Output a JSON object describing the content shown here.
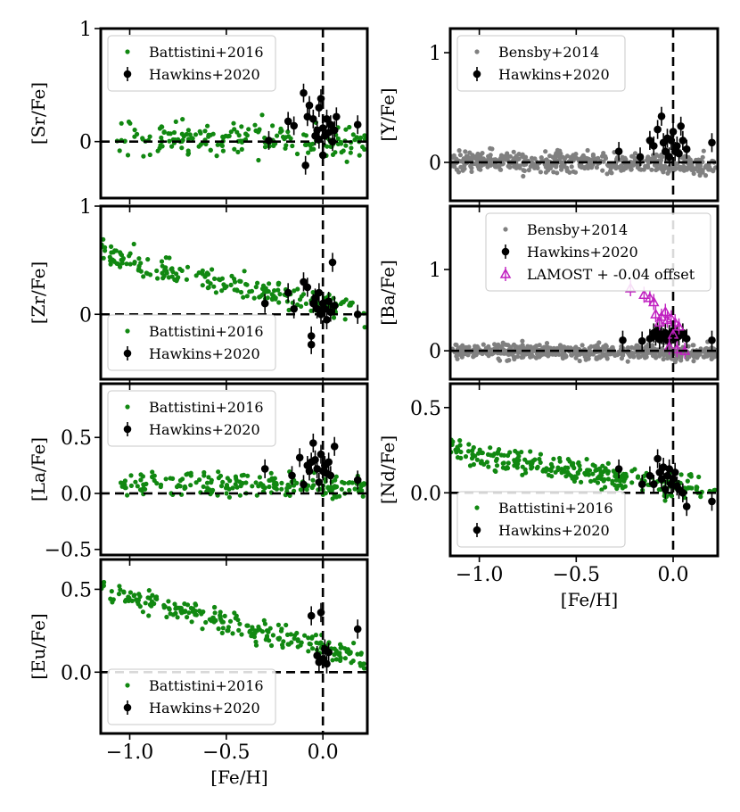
{
  "figure": {
    "xlabel": "[Fe/H]"
  },
  "colors": {
    "battistini": "#118811",
    "bensby": "#808080",
    "hawkins": "#000000",
    "lamost": "#c020c0"
  },
  "chart_data": [
    {
      "id": "sr",
      "type": "scatter",
      "ylabel": "[Sr/Fe]",
      "xlim": [
        -1.15,
        0.23
      ],
      "ylim": [
        -0.5,
        1.0
      ],
      "xticks": [
        -1.0,
        -0.5,
        0.0
      ],
      "xticklabels": [],
      "yticks": [
        1,
        0
      ],
      "yticklabels": [
        "1",
        "0"
      ],
      "legend": {
        "position": "top-left",
        "entries": [
          "Battistini+2016",
          "Hawkins+2020"
        ]
      },
      "series": [
        {
          "name": "Battistini+2016",
          "style": "dot",
          "color": "#118811",
          "seed": 11,
          "n": 190,
          "xrange": [
            -1.1,
            0.22
          ],
          "trend": [
            0.05,
            -0.02
          ],
          "spread": 0.15
        },
        {
          "name": "Hawkins+2020",
          "style": "errorbar",
          "color": "#000000",
          "points": [
            [
              -0.28,
              0.01
            ],
            [
              -0.18,
              0.18
            ],
            [
              -0.15,
              0.14
            ],
            [
              -0.1,
              0.43
            ],
            [
              -0.09,
              -0.21
            ],
            [
              -0.08,
              0.22
            ],
            [
              -0.07,
              0.32
            ],
            [
              -0.05,
              0.2
            ],
            [
              -0.04,
              0.05
            ],
            [
              -0.03,
              0.1
            ],
            [
              -0.02,
              0.3
            ],
            [
              -0.02,
              0.02
            ],
            [
              -0.01,
              0.38
            ],
            [
              0.0,
              0.12
            ],
            [
              0.0,
              -0.12
            ],
            [
              0.01,
              0.05
            ],
            [
              0.02,
              0.2
            ],
            [
              0.03,
              0.08
            ],
            [
              0.04,
              0.15
            ],
            [
              0.05,
              0.0
            ],
            [
              0.06,
              0.1
            ],
            [
              0.07,
              0.22
            ],
            [
              0.18,
              0.15
            ]
          ]
        }
      ]
    },
    {
      "id": "zr",
      "type": "scatter",
      "ylabel": "[Zr/Fe]",
      "xlim": [
        -1.15,
        0.23
      ],
      "ylim": [
        -0.6,
        1.0
      ],
      "xticks": [
        -1.0,
        -0.5,
        0.0
      ],
      "xticklabels": [],
      "yticks": [
        1,
        0
      ],
      "yticklabels": [
        "1",
        "0"
      ],
      "legend": {
        "position": "bottom-left",
        "entries": [
          "Battistini+2016",
          "Hawkins+2020"
        ]
      },
      "series": [
        {
          "name": "Battistini+2016",
          "style": "dot",
          "color": "#118811",
          "seed": 23,
          "n": 200,
          "xrange": [
            -1.15,
            0.22
          ],
          "trend": [
            0.55,
            0.0
          ],
          "spread": 0.12
        },
        {
          "name": "Hawkins+2020",
          "style": "errorbar",
          "color": "#000000",
          "points": [
            [
              -0.3,
              0.1
            ],
            [
              -0.18,
              0.2
            ],
            [
              -0.15,
              0.05
            ],
            [
              -0.1,
              0.3
            ],
            [
              -0.08,
              0.25
            ],
            [
              -0.06,
              -0.2
            ],
            [
              -0.06,
              -0.28
            ],
            [
              -0.05,
              0.1
            ],
            [
              -0.04,
              0.15
            ],
            [
              -0.03,
              0.05
            ],
            [
              -0.02,
              0.2
            ],
            [
              -0.01,
              0.0
            ],
            [
              0.0,
              0.1
            ],
            [
              0.01,
              0.05
            ],
            [
              0.02,
              -0.05
            ],
            [
              0.03,
              0.12
            ],
            [
              0.04,
              0.02
            ],
            [
              0.05,
              0.48
            ],
            [
              0.06,
              0.08
            ],
            [
              0.18,
              0.0
            ]
          ]
        }
      ]
    },
    {
      "id": "la",
      "type": "scatter",
      "ylabel": "[La/Fe]",
      "xlim": [
        -1.15,
        0.23
      ],
      "ylim": [
        -0.55,
        0.98
      ],
      "xticks": [
        -1.0,
        -0.5,
        0.0
      ],
      "xticklabels": [],
      "yticks": [
        0.5,
        0.0,
        -0.5
      ],
      "yticklabels": [
        "0.5",
        "0.0",
        "−0.5"
      ],
      "legend": {
        "position": "top-left",
        "entries": [
          "Battistini+2016",
          "Hawkins+2020"
        ]
      },
      "series": [
        {
          "name": "Battistini+2016",
          "style": "dot",
          "color": "#118811",
          "seed": 37,
          "n": 200,
          "xrange": [
            -1.05,
            0.22
          ],
          "trend": [
            0.1,
            0.05
          ],
          "spread": 0.1
        },
        {
          "name": "Hawkins+2020",
          "style": "errorbar",
          "color": "#000000",
          "points": [
            [
              -0.3,
              0.22
            ],
            [
              -0.16,
              0.16
            ],
            [
              -0.12,
              0.32
            ],
            [
              -0.1,
              0.08
            ],
            [
              -0.08,
              0.25
            ],
            [
              -0.07,
              0.2
            ],
            [
              -0.06,
              0.28
            ],
            [
              -0.05,
              0.45
            ],
            [
              -0.04,
              0.3
            ],
            [
              -0.03,
              0.22
            ],
            [
              -0.02,
              0.1
            ],
            [
              -0.01,
              0.35
            ],
            [
              0.0,
              0.2
            ],
            [
              0.01,
              0.25
            ],
            [
              0.02,
              0.18
            ],
            [
              0.03,
              0.28
            ],
            [
              0.04,
              0.16
            ],
            [
              0.06,
              0.42
            ],
            [
              0.18,
              0.12
            ]
          ]
        }
      ]
    },
    {
      "id": "eu",
      "type": "scatter",
      "ylabel": "[Eu/Fe]",
      "xlim": [
        -1.15,
        0.23
      ],
      "ylim": [
        -0.37,
        0.68
      ],
      "xticks": [
        -1.0,
        -0.5,
        0.0
      ],
      "xticklabels": [
        "−1.0",
        "−0.5",
        "0.0"
      ],
      "yticks": [
        0.5,
        0.0
      ],
      "yticklabels": [
        "0.5",
        "0.0"
      ],
      "legend": {
        "position": "bottom-left",
        "entries": [
          "Battistini+2016",
          "Hawkins+2020"
        ]
      },
      "series": [
        {
          "name": "Battistini+2016",
          "style": "dot",
          "color": "#118811",
          "seed": 51,
          "n": 230,
          "xrange": [
            -1.15,
            0.22
          ],
          "trend": [
            0.5,
            0.08
          ],
          "spread": 0.07
        },
        {
          "name": "Hawkins+2020",
          "style": "errorbar",
          "color": "#000000",
          "points": [
            [
              -0.06,
              0.34
            ],
            [
              -0.03,
              0.1
            ],
            [
              -0.01,
              0.36
            ],
            [
              0.0,
              0.08
            ],
            [
              0.01,
              0.14
            ],
            [
              0.02,
              0.05
            ],
            [
              -0.02,
              0.06
            ],
            [
              0.03,
              0.12
            ],
            [
              0.18,
              0.26
            ]
          ]
        }
      ]
    },
    {
      "id": "y",
      "type": "scatter",
      "ylabel": "[Y/Fe]",
      "xlim": [
        -1.15,
        0.23
      ],
      "ylim": [
        -0.35,
        1.22
      ],
      "xticks": [
        -1.0,
        -0.5,
        0.0
      ],
      "xticklabels": [],
      "yticks": [
        1,
        0
      ],
      "yticklabels": [
        "1",
        "0"
      ],
      "legend": {
        "position": "top-left",
        "entries": [
          "Bensby+2014",
          "Hawkins+2020"
        ]
      },
      "series": [
        {
          "name": "Bensby+2014",
          "style": "dot",
          "color": "#808080",
          "seed": 67,
          "n": 480,
          "xrange": [
            -1.15,
            0.22
          ],
          "trend": [
            0.02,
            -0.02
          ],
          "spread": 0.09
        },
        {
          "name": "Hawkins+2020",
          "style": "errorbar",
          "color": "#000000",
          "points": [
            [
              -0.28,
              0.1
            ],
            [
              -0.17,
              0.05
            ],
            [
              -0.12,
              0.2
            ],
            [
              -0.1,
              0.15
            ],
            [
              -0.08,
              0.3
            ],
            [
              -0.06,
              0.42
            ],
            [
              -0.05,
              0.18
            ],
            [
              -0.04,
              0.1
            ],
            [
              -0.03,
              0.22
            ],
            [
              -0.02,
              0.05
            ],
            [
              -0.01,
              0.2
            ],
            [
              0.0,
              0.28
            ],
            [
              0.01,
              0.1
            ],
            [
              0.02,
              0.15
            ],
            [
              0.03,
              0.08
            ],
            [
              0.04,
              0.33
            ],
            [
              0.05,
              0.2
            ],
            [
              0.07,
              0.12
            ],
            [
              0.2,
              0.18
            ]
          ]
        }
      ]
    },
    {
      "id": "ba",
      "type": "scatter",
      "ylabel": "[Ba/Fe]",
      "xlim": [
        -1.15,
        0.23
      ],
      "ylim": [
        -0.35,
        1.78
      ],
      "xticks": [
        -1.0,
        -0.5,
        0.0
      ],
      "xticklabels": [],
      "yticks": [
        1,
        0
      ],
      "yticklabels": [
        "1",
        "0"
      ],
      "legend": {
        "position": "top-right",
        "entries": [
          "Bensby+2014",
          "Hawkins+2020",
          "LAMOST + -0.04 offset"
        ]
      },
      "series": [
        {
          "name": "Bensby+2014",
          "style": "dot",
          "color": "#808080",
          "seed": 79,
          "n": 520,
          "xrange": [
            -1.15,
            0.22
          ],
          "trend": [
            0.0,
            -0.02
          ],
          "spread": 0.09
        },
        {
          "name": "Hawkins+2020",
          "style": "errorbar",
          "color": "#000000",
          "points": [
            [
              -0.26,
              0.13
            ],
            [
              -0.16,
              0.12
            ],
            [
              -0.12,
              0.15
            ],
            [
              -0.1,
              0.22
            ],
            [
              -0.09,
              0.18
            ],
            [
              -0.08,
              0.25
            ],
            [
              -0.07,
              0.14
            ],
            [
              -0.06,
              0.2
            ],
            [
              -0.05,
              0.16
            ],
            [
              -0.04,
              0.22
            ],
            [
              -0.03,
              0.13
            ],
            [
              -0.02,
              0.2
            ],
            [
              -0.01,
              0.17
            ],
            [
              0.0,
              0.24
            ],
            [
              0.01,
              0.15
            ],
            [
              0.02,
              0.2
            ],
            [
              0.03,
              0.18
            ],
            [
              0.05,
              0.22
            ],
            [
              0.07,
              0.15
            ],
            [
              0.2,
              0.13
            ]
          ]
        },
        {
          "name": "LAMOST + -0.04 offset",
          "style": "triangle",
          "color": "#c020c0",
          "points": [
            [
              -0.22,
              0.77
            ],
            [
              -0.15,
              0.69
            ],
            [
              -0.12,
              0.65
            ],
            [
              -0.1,
              0.6
            ],
            [
              -0.09,
              0.45
            ],
            [
              -0.07,
              0.35
            ],
            [
              -0.06,
              0.42
            ],
            [
              -0.04,
              0.48
            ],
            [
              -0.03,
              0.38
            ],
            [
              -0.01,
              0.4
            ],
            [
              0.0,
              0.2
            ],
            [
              0.01,
              0.35
            ],
            [
              0.03,
              0.3
            ],
            [
              -0.02,
              0.05
            ],
            [
              0.02,
              0.02
            ],
            [
              0.06,
              0.0
            ]
          ]
        }
      ]
    },
    {
      "id": "nd",
      "type": "scatter",
      "ylabel": "[Nd/Fe]",
      "xlim": [
        -1.15,
        0.23
      ],
      "ylim": [
        -0.37,
        0.64
      ],
      "xticks": [
        -1.0,
        -0.5,
        0.0
      ],
      "xticklabels": [
        "−1.0",
        "−0.5",
        "0.0"
      ],
      "yticks": [
        0.5,
        0.0
      ],
      "yticklabels": [
        "0.5",
        "0.0"
      ],
      "legend": {
        "position": "bottom-left",
        "entries": [
          "Battistini+2016",
          "Hawkins+2020"
        ]
      },
      "series": [
        {
          "name": "Battistini+2016",
          "style": "dot",
          "color": "#118811",
          "seed": 91,
          "n": 270,
          "xrange": [
            -1.15,
            0.22
          ],
          "trend": [
            0.25,
            0.0
          ],
          "spread": 0.07
        },
        {
          "name": "Hawkins+2020",
          "style": "errorbar",
          "color": "#000000",
          "points": [
            [
              -0.28,
              0.14
            ],
            [
              -0.16,
              0.05
            ],
            [
              -0.12,
              0.1
            ],
            [
              -0.1,
              0.05
            ],
            [
              -0.08,
              0.2
            ],
            [
              -0.07,
              0.12
            ],
            [
              -0.06,
              0.08
            ],
            [
              -0.05,
              0.15
            ],
            [
              -0.04,
              0.02
            ],
            [
              -0.03,
              0.1
            ],
            [
              -0.02,
              0.14
            ],
            [
              -0.01,
              0.05
            ],
            [
              0.0,
              0.08
            ],
            [
              0.01,
              0.12
            ],
            [
              0.02,
              0.04
            ],
            [
              0.03,
              0.02
            ],
            [
              0.05,
              0.0
            ],
            [
              0.07,
              -0.08
            ],
            [
              0.2,
              -0.05
            ]
          ]
        }
      ]
    }
  ]
}
